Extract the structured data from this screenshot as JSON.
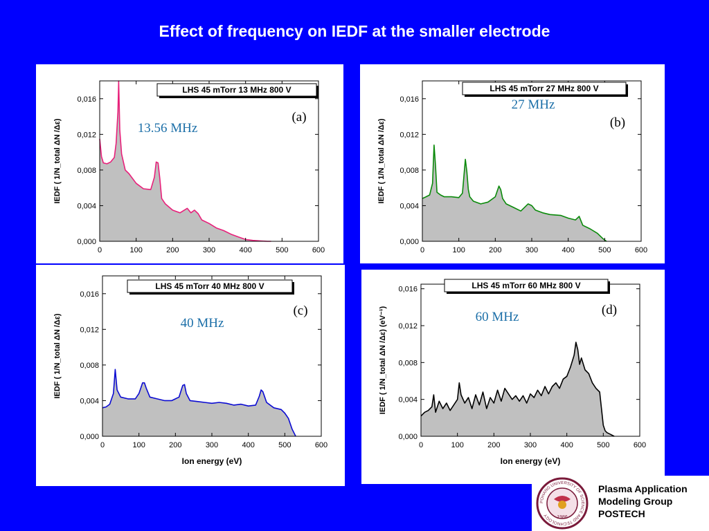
{
  "slide": {
    "title": "Effect of frequency on IEDF at the smaller electrode",
    "colors": {
      "background": "#0000ff",
      "fill": "#c0c0c0"
    }
  },
  "chart_data": [
    {
      "type": "area",
      "panel_label": "(a)",
      "legend": "LHS 45 mTorr  13 MHz  800 V",
      "annotation": "13.56 MHz",
      "line_color": "#e8207a",
      "annotation_color": "#1c6fa8",
      "xlabel": "",
      "ylabel": "IEDF   ( 1/N_total ΔN /Δε)",
      "xlim": [
        0,
        600
      ],
      "ylim": [
        0,
        0.018
      ],
      "xticks": [
        "0",
        "100",
        "200",
        "300",
        "400",
        "500",
        "600"
      ],
      "yticks": [
        "0,000",
        "0,004",
        "0,008",
        "0,012",
        "0,016"
      ],
      "x": [
        0,
        5,
        10,
        20,
        30,
        40,
        45,
        50,
        52,
        55,
        60,
        70,
        80,
        100,
        120,
        140,
        150,
        155,
        160,
        165,
        170,
        180,
        200,
        220,
        240,
        250,
        260,
        270,
        280,
        300,
        320,
        340,
        360,
        380,
        400,
        420,
        440,
        460,
        470
      ],
      "y": [
        0.0115,
        0.0095,
        0.0088,
        0.0087,
        0.0089,
        0.0094,
        0.011,
        0.0145,
        0.018,
        0.0125,
        0.0098,
        0.008,
        0.0076,
        0.0065,
        0.0059,
        0.0058,
        0.0072,
        0.0089,
        0.0088,
        0.007,
        0.0048,
        0.0042,
        0.0035,
        0.0032,
        0.0037,
        0.0032,
        0.0035,
        0.0031,
        0.0024,
        0.002,
        0.0015,
        0.0012,
        0.0008,
        0.0005,
        0.0002,
        0.0001,
        5e-05,
        0,
        0
      ]
    },
    {
      "type": "area",
      "panel_label": "(b)",
      "legend": "LHS 45 mTorr  27 MHz  800 V",
      "annotation": "27 MHz",
      "line_color": "#0a8a0a",
      "annotation_color": "#1c6fa8",
      "xlabel": "",
      "ylabel": "IEDF   ( 1/N_total ΔN /Δε)",
      "xlim": [
        0,
        600
      ],
      "ylim": [
        0,
        0.018
      ],
      "xticks": [
        "0",
        "100",
        "200",
        "300",
        "400",
        "500",
        "600"
      ],
      "yticks": [
        "0,000",
        "0,004",
        "0,008",
        "0,012",
        "0,016"
      ],
      "x": [
        0,
        10,
        20,
        28,
        32,
        36,
        40,
        50,
        60,
        80,
        100,
        110,
        118,
        122,
        126,
        130,
        140,
        160,
        180,
        200,
        210,
        215,
        220,
        230,
        250,
        270,
        290,
        300,
        310,
        330,
        350,
        380,
        400,
        420,
        430,
        440,
        460,
        480,
        495,
        505
      ],
      "y": [
        0.0048,
        0.005,
        0.0052,
        0.0065,
        0.0108,
        0.0085,
        0.0055,
        0.0052,
        0.005,
        0.005,
        0.0049,
        0.0054,
        0.0092,
        0.0078,
        0.0058,
        0.005,
        0.0045,
        0.0042,
        0.0044,
        0.005,
        0.0062,
        0.0058,
        0.0048,
        0.0042,
        0.0038,
        0.0034,
        0.0042,
        0.004,
        0.0035,
        0.0032,
        0.003,
        0.0029,
        0.0026,
        0.0024,
        0.0028,
        0.0018,
        0.0014,
        0.0009,
        0.0003,
        0
      ]
    },
    {
      "type": "area",
      "panel_label": "(c)",
      "legend": "LHS 45 mTorr  40 MHz  800 V",
      "annotation": "40 MHz",
      "line_color": "#0a0ad2",
      "annotation_color": "#1c6fa8",
      "xlabel": "Ion energy (eV)",
      "ylabel": "IEDF   ( 1/N_total ΔN /Δε)",
      "xlim": [
        0,
        600
      ],
      "ylim": [
        0,
        0.018
      ],
      "xticks": [
        "0",
        "100",
        "200",
        "300",
        "400",
        "500",
        "600"
      ],
      "yticks": [
        "0,000",
        "0,004",
        "0,008",
        "0,012",
        "0,016"
      ],
      "x": [
        0,
        10,
        20,
        30,
        35,
        40,
        50,
        70,
        90,
        100,
        110,
        115,
        120,
        130,
        150,
        170,
        190,
        210,
        220,
        225,
        230,
        240,
        260,
        280,
        300,
        320,
        340,
        360,
        380,
        400,
        420,
        430,
        435,
        440,
        450,
        470,
        490,
        500,
        510,
        520,
        530
      ],
      "y": [
        0.0032,
        0.0033,
        0.0036,
        0.0048,
        0.0075,
        0.0052,
        0.0044,
        0.0042,
        0.0042,
        0.0048,
        0.006,
        0.006,
        0.0054,
        0.0044,
        0.0042,
        0.004,
        0.004,
        0.0044,
        0.0057,
        0.0058,
        0.0048,
        0.004,
        0.0039,
        0.0038,
        0.0037,
        0.0038,
        0.0037,
        0.0035,
        0.0036,
        0.0034,
        0.0035,
        0.0045,
        0.0052,
        0.005,
        0.0038,
        0.0032,
        0.003,
        0.0026,
        0.002,
        0.0008,
        0
      ]
    },
    {
      "type": "area",
      "panel_label": "(d)",
      "legend": "LHS 45 mTorr  60 MHz  800 V",
      "annotation": "60 MHz",
      "line_color": "#000000",
      "annotation_color": "#1c6fa8",
      "xlabel": "Ion energy (eV)",
      "ylabel": "IEDF   ( 1/N_total ΔN /Δε)  (eV⁻¹)",
      "xlim": [
        0,
        600
      ],
      "ylim": [
        0,
        0.0165
      ],
      "xticks": [
        "0",
        "100",
        "200",
        "300",
        "400",
        "500",
        "600"
      ],
      "yticks": [
        "0,000",
        "0,004",
        "0,008",
        "0,012",
        "0,016"
      ],
      "x": [
        0,
        10,
        20,
        30,
        35,
        40,
        50,
        60,
        70,
        80,
        90,
        100,
        105,
        110,
        120,
        130,
        140,
        150,
        160,
        170,
        180,
        190,
        200,
        210,
        220,
        230,
        240,
        250,
        260,
        270,
        280,
        290,
        300,
        310,
        320,
        330,
        340,
        350,
        360,
        370,
        380,
        390,
        400,
        410,
        420,
        425,
        430,
        435,
        440,
        450,
        460,
        470,
        480,
        490,
        495,
        500,
        505,
        510,
        520,
        530
      ],
      "y": [
        0.0022,
        0.0026,
        0.0028,
        0.0032,
        0.0045,
        0.0026,
        0.0038,
        0.003,
        0.0036,
        0.0028,
        0.0034,
        0.004,
        0.0058,
        0.0045,
        0.0036,
        0.0042,
        0.003,
        0.0045,
        0.0034,
        0.0048,
        0.003,
        0.0042,
        0.0036,
        0.005,
        0.0038,
        0.0052,
        0.0046,
        0.004,
        0.0044,
        0.0038,
        0.0044,
        0.0036,
        0.0046,
        0.0042,
        0.005,
        0.0044,
        0.0054,
        0.0046,
        0.0054,
        0.0058,
        0.0052,
        0.0062,
        0.0065,
        0.0075,
        0.0088,
        0.0102,
        0.0094,
        0.0078,
        0.0085,
        0.0072,
        0.0068,
        0.0058,
        0.0052,
        0.0048,
        0.003,
        0.0012,
        0.0006,
        0.0004,
        0.0002,
        0
      ]
    }
  ],
  "logo": {
    "lines": [
      "Plasma Application",
      "Modeling Group",
      "POSTECH"
    ],
    "seal_text": "POHANG UNIVERSITY OF SCIENCE AND TECHNOLOGY",
    "seal_year": "1986"
  }
}
